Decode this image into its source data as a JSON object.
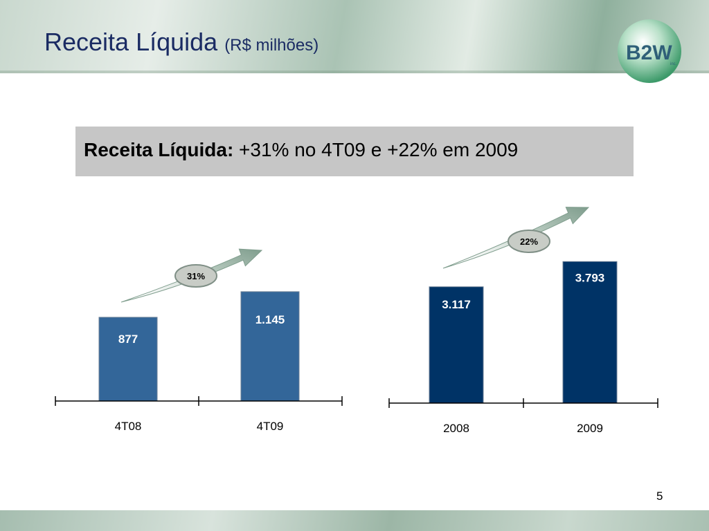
{
  "slide": {
    "title": "Receita Líquida",
    "title_unit": "(R$ milhões)",
    "subtitle_bold": "Receita Líquida:",
    "subtitle_rest": " +31% no 4T09 e +22% em 2009",
    "page_number": "5",
    "logo": {
      "text": "B2W",
      "sub": "inc."
    }
  },
  "colors": {
    "quarter_bar": "#336699",
    "year_bar": "#003366",
    "growth_badge": "#c8ccc6",
    "arrow": "#8aa699"
  },
  "chart_data": [
    {
      "type": "bar",
      "categories": [
        "4T08",
        "4T09"
      ],
      "values": [
        877,
        1145
      ],
      "data_labels": [
        "877",
        "1.145"
      ],
      "growth_label": "31%",
      "ylim": [
        0,
        1500
      ],
      "grid": false
    },
    {
      "type": "bar",
      "categories": [
        "2008",
        "2009"
      ],
      "values": [
        3117,
        3793
      ],
      "data_labels": [
        "3.117",
        "3.793"
      ],
      "growth_label": "22%",
      "ylim": [
        0,
        5000
      ],
      "grid": false
    }
  ]
}
